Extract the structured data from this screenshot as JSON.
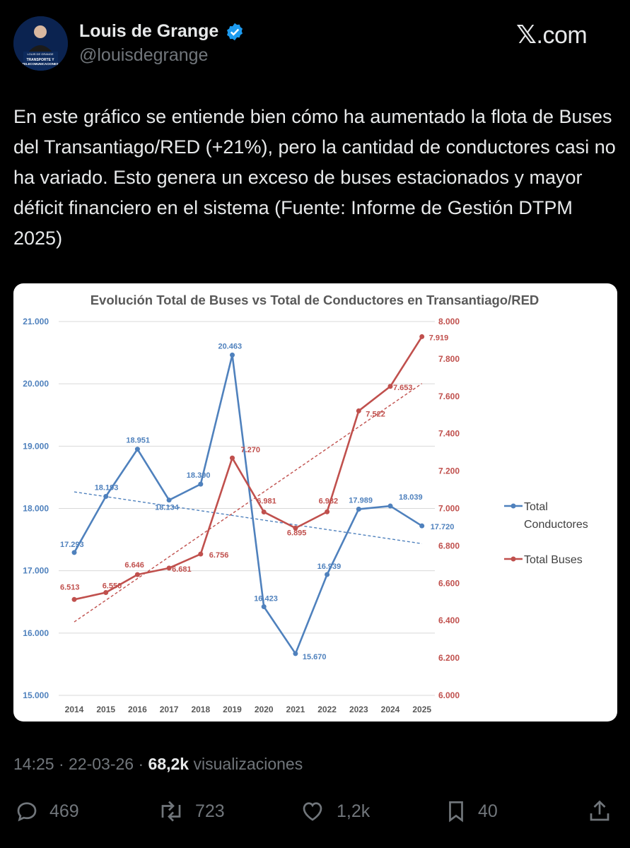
{
  "user": {
    "name": "Louis de Grange",
    "handle": "@louisdegrange",
    "avatar_caption_1": "LOUIS DE GRANGE",
    "avatar_caption_2": "TRANSPORTE Y",
    "avatar_caption_3": "TELECOMUNICACIONES"
  },
  "brand": {
    "logo_text": ".com",
    "logo_x": "𝕏"
  },
  "tweet": {
    "text": "En este gráfico se entiende bien cómo ha aumentado la flota de Buses del Transantiago/RED (+21%), pero la cantidad de conductores casi no ha variado. Esto genera un exceso de buses estacionados y mayor déficit financiero en el sistema (Fuente: Informe de Gestión DTPM 2025)"
  },
  "meta": {
    "time": "14:25",
    "sep1": " · ",
    "date": "22-03-26",
    "sep2": " · ",
    "views": "68,2k",
    "views_label": " visualizaciones"
  },
  "actions": {
    "replies": "469",
    "reposts": "723",
    "likes": "1,2k",
    "bookmarks": "40"
  },
  "colors": {
    "conductores": "#4f81bd",
    "buses": "#c0504d",
    "accent": "#1d9bf0"
  },
  "chart_data": {
    "type": "line",
    "title": "Evolución Total de Buses vs Total de Conductores en Transantiago/RED",
    "categories": [
      "2014",
      "2015",
      "2016",
      "2017",
      "2018",
      "2019",
      "2020",
      "2021",
      "2022",
      "2023",
      "2024",
      "2025"
    ],
    "series": [
      {
        "name": "Total Conductores",
        "axis": "left",
        "values": [
          17293,
          18193,
          18951,
          18134,
          18390,
          20463,
          16423,
          15670,
          16939,
          17989,
          18039,
          17720
        ],
        "labels": [
          "17.293",
          "18.193",
          "18.951",
          "18.134",
          "18.390",
          "20.463",
          "16.423",
          "15.670",
          "16.939",
          "17.989",
          "18.039",
          "17.720"
        ]
      },
      {
        "name": "Total Buses",
        "axis": "right",
        "values": [
          6513,
          6550,
          6646,
          6681,
          6756,
          7270,
          6981,
          6895,
          6982,
          7522,
          7653,
          7919
        ],
        "labels": [
          "6.513",
          "6.550",
          "6.646",
          "6.681",
          "6.756",
          "7.270",
          "6.981",
          "6.895",
          "6.982",
          "7.522",
          "7.653",
          "7.919"
        ]
      }
    ],
    "trendlines": true,
    "left_axis": {
      "ylim": [
        15000,
        21000
      ],
      "ticks": [
        "15.000",
        "16.000",
        "17.000",
        "18.000",
        "19.000",
        "20.000",
        "21.000"
      ]
    },
    "right_axis": {
      "ylim": [
        6000,
        8000
      ],
      "ticks": [
        "6.000",
        "6.200",
        "6.400",
        "6.600",
        "6.800",
        "7.000",
        "7.200",
        "7.400",
        "7.600",
        "7.800",
        "8.000"
      ]
    },
    "legend": {
      "position": "right",
      "conductores_line1": "Total",
      "conductores_line2": "Conductores",
      "buses": "Total Buses"
    }
  }
}
